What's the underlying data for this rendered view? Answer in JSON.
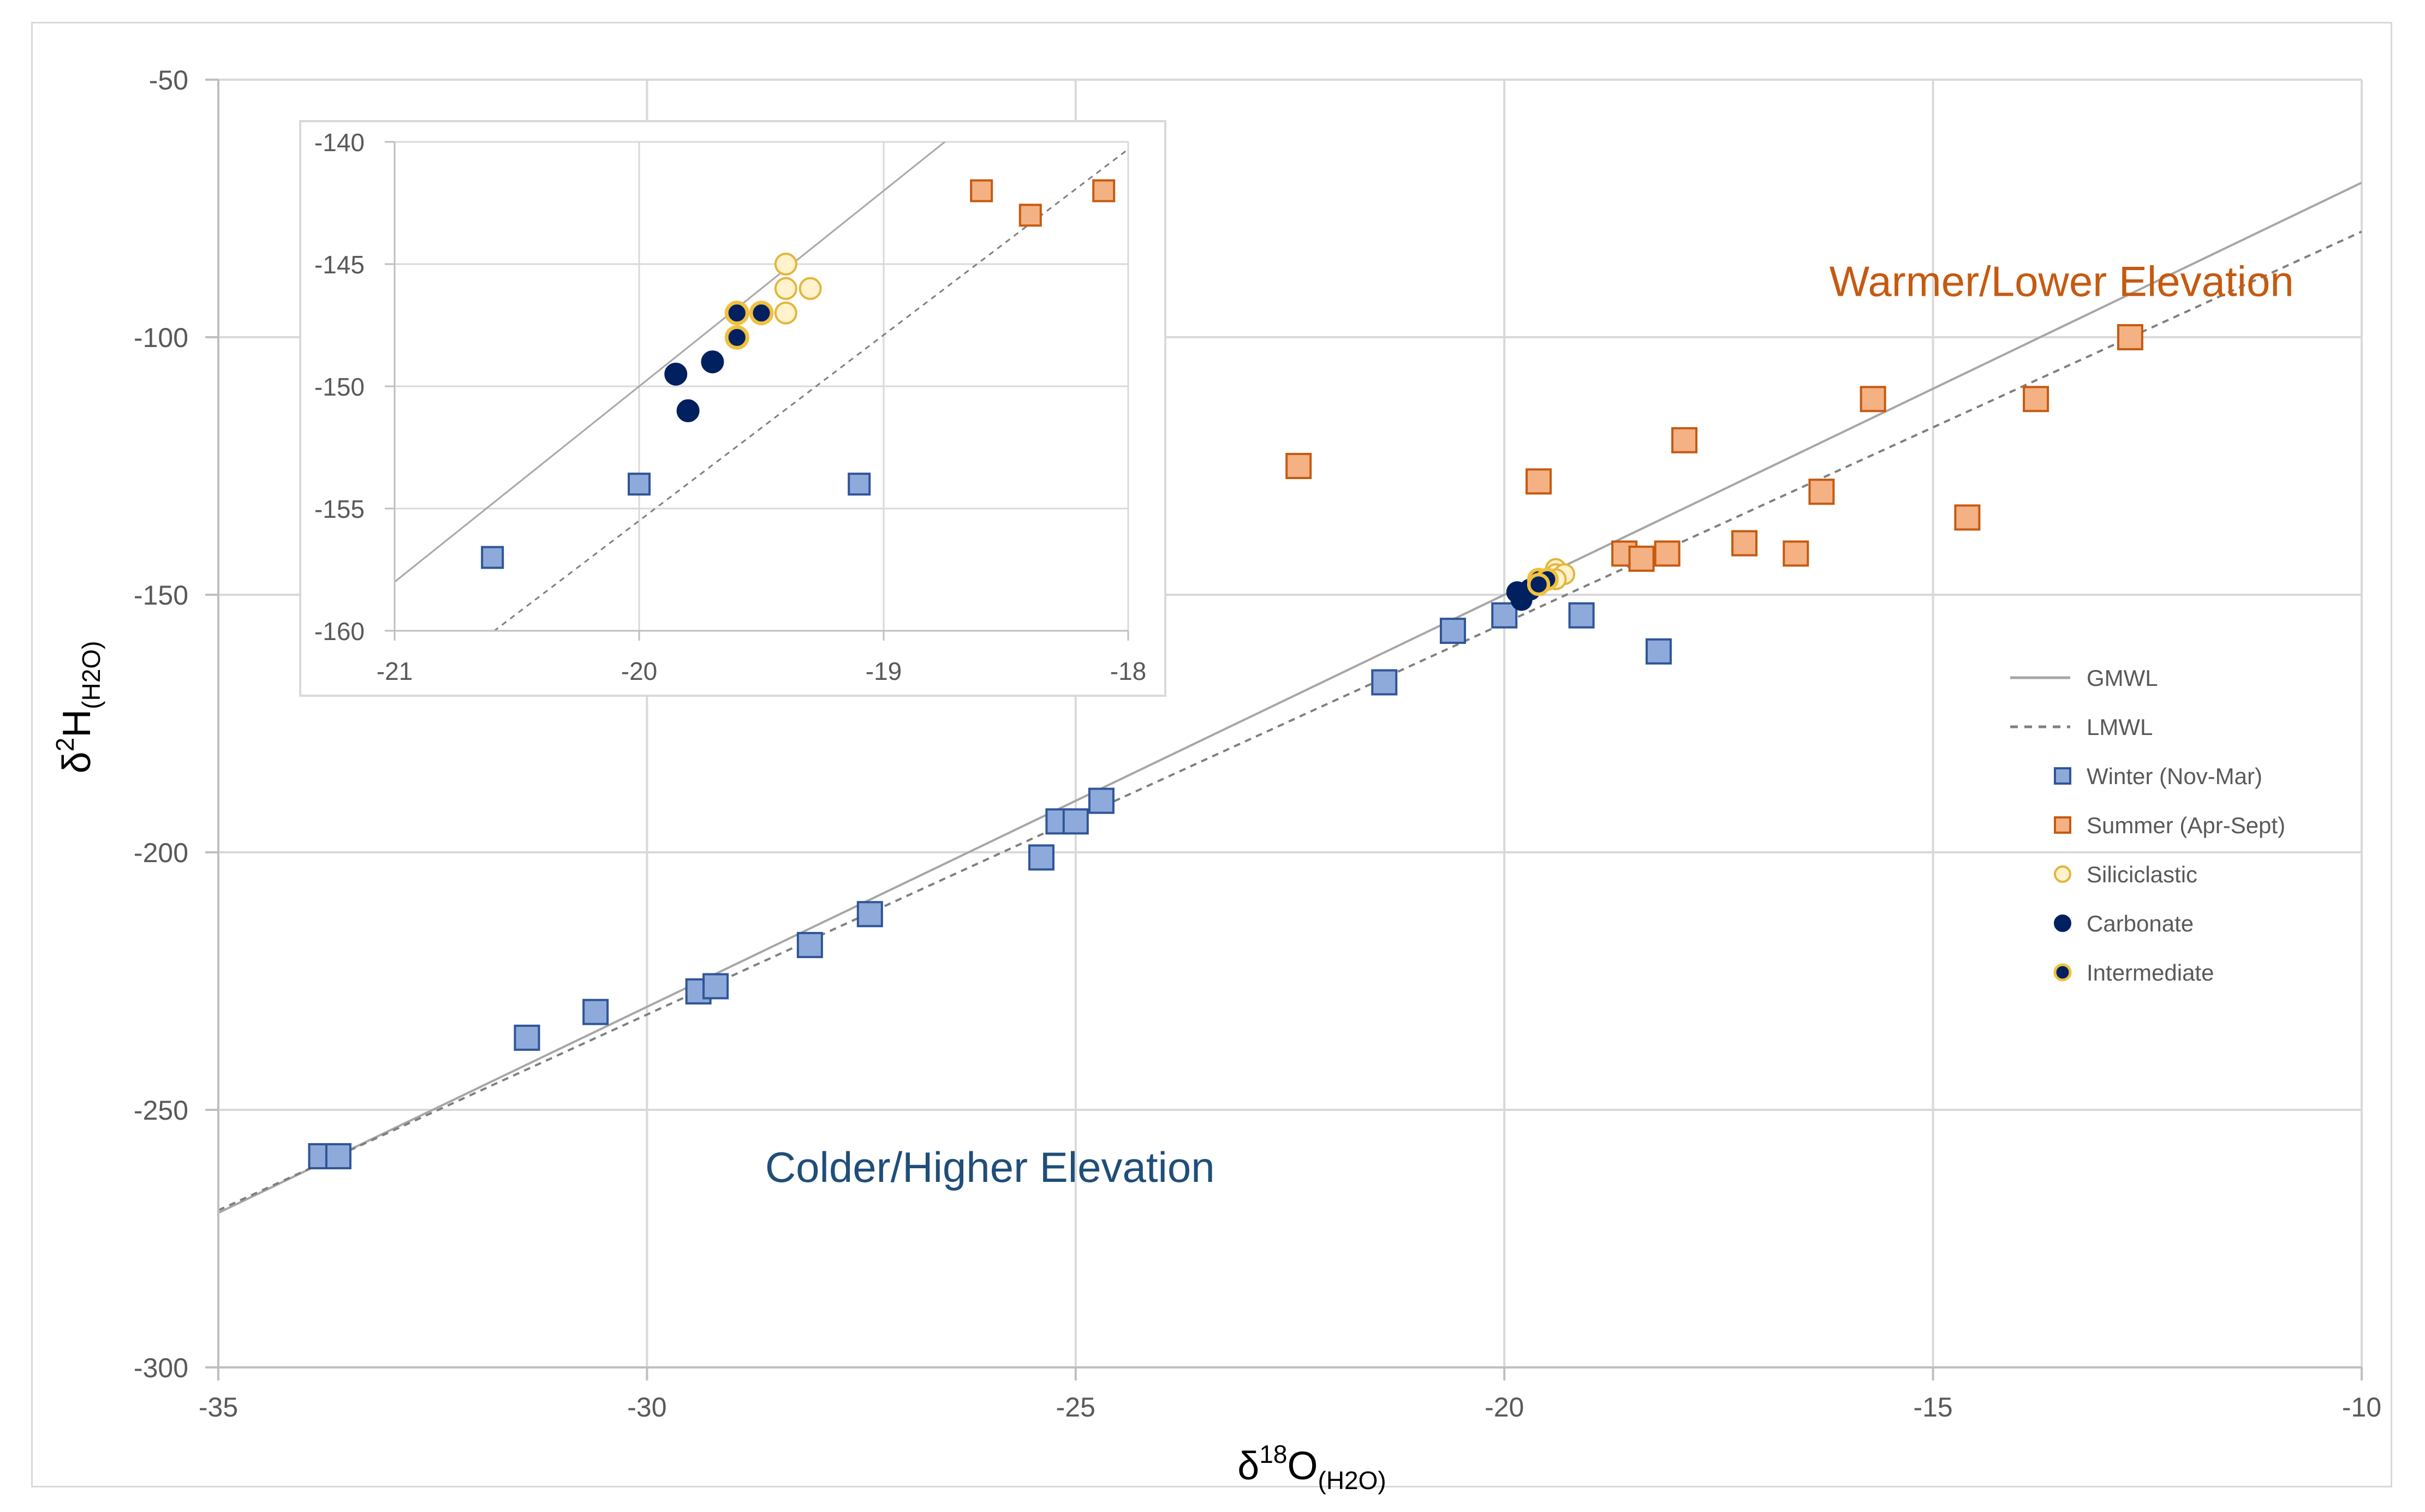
{
  "chart_data": {
    "type": "scatter",
    "xlabel": {
      "main": "δ",
      "sup": "18",
      "rest": "O",
      "sub": "(H2O)"
    },
    "ylabel": {
      "main": "δ",
      "sup": "2",
      "rest": "H",
      "sub": "(H2O)"
    },
    "xlim": [
      -35,
      -10
    ],
    "ylim": [
      -300,
      -50
    ],
    "xticks": [
      -35,
      -30,
      -25,
      -20,
      -15,
      -10
    ],
    "yticks": [
      -50,
      -100,
      -150,
      -200,
      -250,
      -300
    ],
    "xtick_labels": [
      "-35",
      "-30",
      "-25",
      "-20",
      "-15",
      "-10"
    ],
    "ytick_labels": [
      "-50",
      "-100",
      "-150",
      "-200",
      "-250",
      "-300"
    ],
    "grid": true,
    "annotations": [
      {
        "text": "Warmer/Lower Elevation",
        "x": -13.5,
        "y": -92,
        "color": "#c55a11"
      },
      {
        "text": "Colder/Higher Elevation",
        "x": -26.0,
        "y": -264,
        "color": "#1f4e79"
      }
    ],
    "lines": [
      {
        "name": "GMWL",
        "slope": 8,
        "intercept": 10,
        "style": "solid",
        "color": "#a6a6a6"
      },
      {
        "name": "LMWL",
        "slope": 7.6,
        "intercept": -3.5,
        "style": "dashed",
        "color": "#7f7f7f"
      }
    ],
    "series": [
      {
        "name": "Winter (Nov-Mar)",
        "marker": "square",
        "color": "#8eaadb",
        "stroke": "#2f5597",
        "points": [
          [
            -33.8,
            -259
          ],
          [
            -33.6,
            -259
          ],
          [
            -31.4,
            -236
          ],
          [
            -30.6,
            -231
          ],
          [
            -29.4,
            -227
          ],
          [
            -29.2,
            -226
          ],
          [
            -28.1,
            -218
          ],
          [
            -27.4,
            -212
          ],
          [
            -25.4,
            -201
          ],
          [
            -25.2,
            -194
          ],
          [
            -25.0,
            -194
          ],
          [
            -24.7,
            -190
          ],
          [
            -21.4,
            -167
          ],
          [
            -20.6,
            -157
          ],
          [
            -20.0,
            -154
          ],
          [
            -19.1,
            -154
          ],
          [
            -18.2,
            -161
          ]
        ]
      },
      {
        "name": "Summer (Apr-Sept)",
        "marker": "square",
        "color": "#f4b183",
        "stroke": "#c55a11",
        "points": [
          [
            -22.4,
            -125
          ],
          [
            -19.6,
            -128
          ],
          [
            -18.6,
            -142
          ],
          [
            -18.4,
            -143
          ],
          [
            -18.1,
            -142
          ],
          [
            -17.9,
            -120
          ],
          [
            -17.2,
            -140
          ],
          [
            -16.6,
            -142
          ],
          [
            -16.3,
            -130
          ],
          [
            -15.7,
            -112
          ],
          [
            -14.6,
            -135
          ],
          [
            -13.8,
            -112
          ],
          [
            -12.7,
            -100
          ]
        ]
      },
      {
        "name": "Siliciclastic",
        "marker": "circle",
        "color": "#fff2cc",
        "stroke": "#e2b53c",
        "points": [
          [
            -19.4,
            -145.0
          ],
          [
            -19.4,
            -146.0
          ],
          [
            -19.3,
            -146.0
          ],
          [
            -19.4,
            -147.0
          ],
          [
            -19.6,
            -148.0
          ]
        ]
      },
      {
        "name": "Carbonate",
        "marker": "circle",
        "color": "#002060",
        "stroke": "#002060",
        "points": [
          [
            -19.85,
            -149.5
          ],
          [
            -19.7,
            -149.0
          ],
          [
            -19.8,
            -151.0
          ]
        ]
      },
      {
        "name": "Intermediate",
        "marker": "circle-ring",
        "color": "#002060",
        "stroke": "#f0c040",
        "points": [
          [
            -19.6,
            -147.0
          ],
          [
            -19.5,
            -147.0
          ],
          [
            -19.6,
            -148.0
          ]
        ]
      }
    ],
    "inset": {
      "xlim": [
        -21,
        -18
      ],
      "ylim": [
        -160,
        -140
      ],
      "xticks": [
        -21,
        -20,
        -19,
        -18
      ],
      "yticks": [
        -140,
        -145,
        -150,
        -155,
        -160
      ],
      "xtick_labels": [
        "-21",
        "-20",
        "-19",
        "-18"
      ],
      "ytick_labels": [
        "-140",
        "-145",
        "-150",
        "-155",
        "-160"
      ]
    },
    "legend": {
      "position": "right",
      "entries": [
        "GMWL",
        "LMWL",
        "Winter (Nov-Mar)",
        "Summer (Apr-Sept)",
        "Siliciclastic",
        "Carbonate",
        "Intermediate"
      ]
    }
  }
}
